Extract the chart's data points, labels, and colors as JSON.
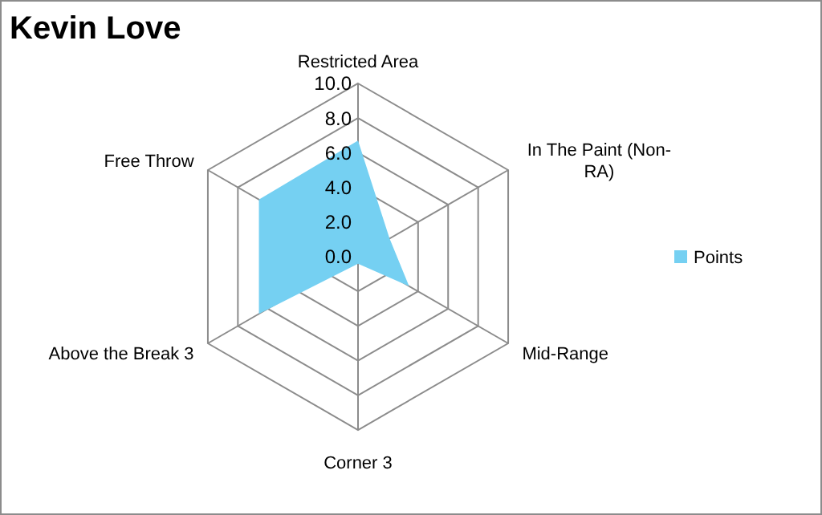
{
  "chart_data": {
    "type": "radar",
    "title": "Kevin Love",
    "categories": [
      "Restricted Area",
      "In The Paint (Non-RA)",
      "Mid-Range",
      "Corner 3",
      "Above the Break 3",
      "Free Throw"
    ],
    "series": [
      {
        "name": "Points",
        "color": "#75d0f2",
        "values": [
          6.7,
          2.1,
          3.4,
          0.4,
          6.6,
          6.6
        ]
      }
    ],
    "ylim": [
      0,
      10
    ],
    "yticks": [
      {
        "value": 0,
        "label": "0.0"
      },
      {
        "value": 2,
        "label": "2.0"
      },
      {
        "value": 4,
        "label": "4.0"
      },
      {
        "value": 6,
        "label": "6.0"
      },
      {
        "value": 8,
        "label": "8.0"
      },
      {
        "value": 10,
        "label": "10.0"
      }
    ],
    "grid": true,
    "legend": "right"
  }
}
